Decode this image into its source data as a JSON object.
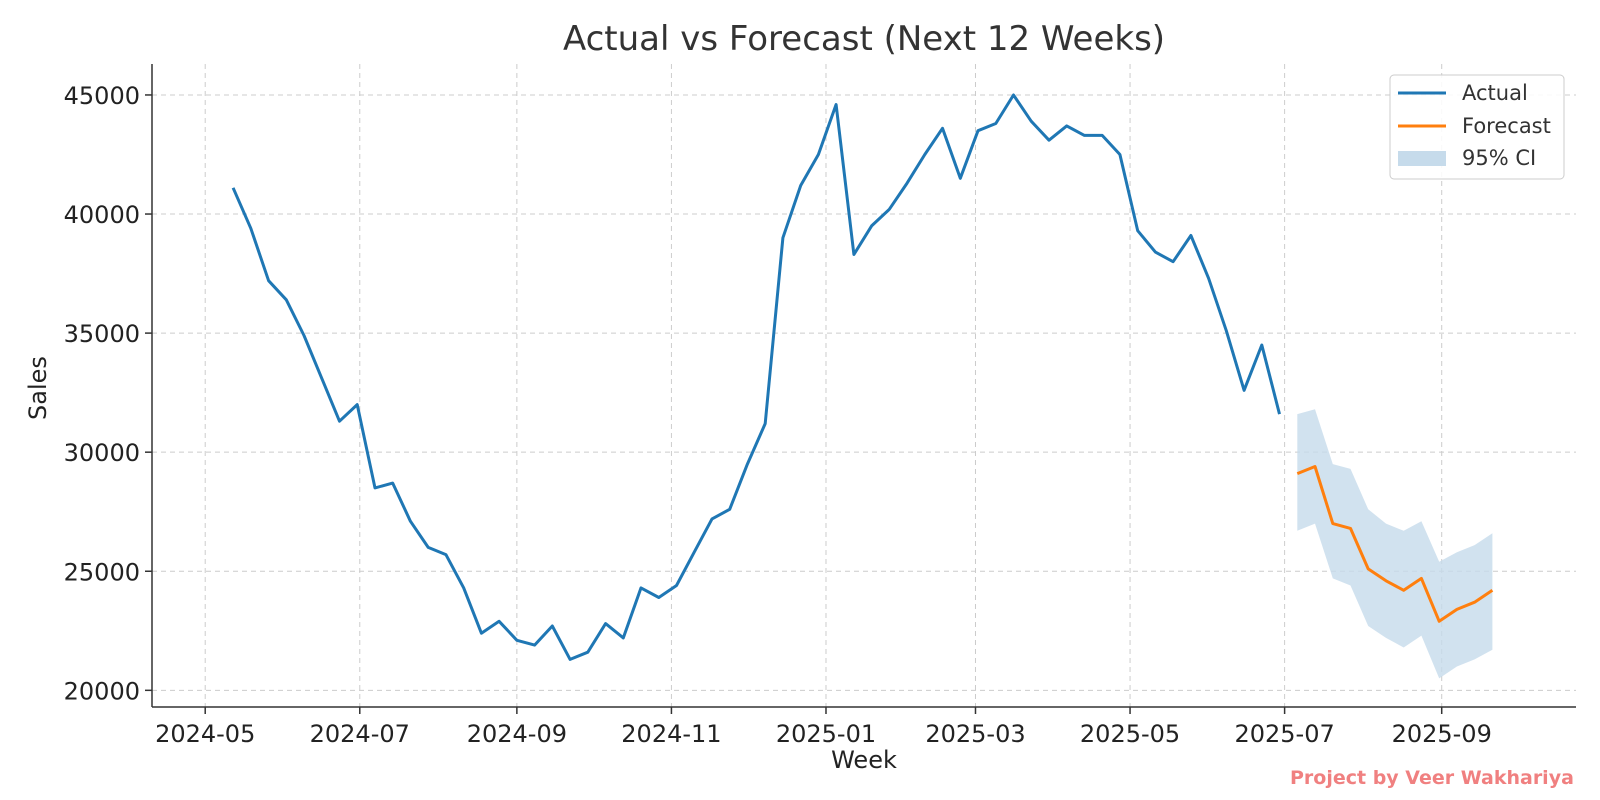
{
  "chart_data": {
    "type": "line",
    "title": "Actual vs Forecast (Next 12 Weeks)",
    "xlabel": "Week",
    "ylabel": "Sales",
    "xlim": [
      "2024-04-10",
      "2025-10-24"
    ],
    "ylim": [
      19300,
      46300
    ],
    "x_ticks": [
      "2024-05",
      "2024-07",
      "2024-09",
      "2024-11",
      "2025-01",
      "2025-03",
      "2025-05",
      "2025-07",
      "2025-09"
    ],
    "y_ticks": [
      20000,
      25000,
      30000,
      35000,
      40000,
      45000
    ],
    "grid": true,
    "legend_position": "top-right",
    "legend": [
      "Actual",
      "Forecast",
      "95% CI"
    ],
    "colors": {
      "actual": "#1f77b4",
      "forecast": "#ff7f0e",
      "ci": "#c6dbeb"
    },
    "series": [
      {
        "name": "Actual",
        "x": [
          "2024-05-12",
          "2024-05-19",
          "2024-05-26",
          "2024-06-02",
          "2024-06-09",
          "2024-06-16",
          "2024-06-23",
          "2024-06-30",
          "2024-07-07",
          "2024-07-14",
          "2024-07-21",
          "2024-07-28",
          "2024-08-04",
          "2024-08-11",
          "2024-08-18",
          "2024-08-25",
          "2024-09-01",
          "2024-09-08",
          "2024-09-15",
          "2024-09-22",
          "2024-09-29",
          "2024-10-06",
          "2024-10-13",
          "2024-10-20",
          "2024-10-27",
          "2024-11-03",
          "2024-11-10",
          "2024-11-17",
          "2024-11-24",
          "2024-12-01",
          "2024-12-08",
          "2024-12-15",
          "2024-12-22",
          "2024-12-29",
          "2025-01-05",
          "2025-01-12",
          "2025-01-19",
          "2025-01-26",
          "2025-02-02",
          "2025-02-09",
          "2025-02-16",
          "2025-02-23",
          "2025-03-02",
          "2025-03-09",
          "2025-03-16",
          "2025-03-23",
          "2025-03-30",
          "2025-04-06",
          "2025-04-13",
          "2025-04-20",
          "2025-04-27",
          "2025-05-04",
          "2025-05-11",
          "2025-05-18",
          "2025-05-25",
          "2025-06-01",
          "2025-06-08",
          "2025-06-15",
          "2025-06-22",
          "2025-06-29"
        ],
        "values": [
          41100,
          39400,
          37200,
          36400,
          34900,
          33100,
          31300,
          32000,
          28500,
          28700,
          27100,
          26000,
          25700,
          24300,
          22400,
          22900,
          22100,
          21900,
          22700,
          21300,
          21600,
          22800,
          22200,
          24300,
          23900,
          24400,
          25800,
          27200,
          27600,
          29500,
          31200,
          39000,
          41200,
          42500,
          44600,
          38300,
          39500,
          40200,
          41300,
          42500,
          43600,
          41500,
          43500,
          43800,
          45000,
          43900,
          43100,
          43700,
          43300,
          43300,
          42500,
          39300,
          38400,
          38000,
          39100,
          37300,
          35100,
          32600,
          34500,
          31600
        ]
      },
      {
        "name": "Forecast",
        "x": [
          "2025-07-06",
          "2025-07-13",
          "2025-07-20",
          "2025-07-27",
          "2025-08-03",
          "2025-08-10",
          "2025-08-17",
          "2025-08-24",
          "2025-08-31",
          "2025-09-07",
          "2025-09-14",
          "2025-09-21"
        ],
        "values": [
          29100,
          29400,
          27000,
          26800,
          25100,
          24600,
          24200,
          24700,
          22900,
          23400,
          23700,
          24200
        ],
        "ci_lower": [
          26700,
          27000,
          24700,
          24400,
          22700,
          22200,
          21800,
          22300,
          20500,
          21000,
          21300,
          21700
        ],
        "ci_upper": [
          31600,
          31800,
          29500,
          29300,
          27600,
          27000,
          26700,
          27100,
          25400,
          25800,
          26100,
          26600
        ]
      }
    ]
  },
  "watermark": {
    "text": "Project by Veer Wakhariya",
    "color": "#f08080"
  }
}
